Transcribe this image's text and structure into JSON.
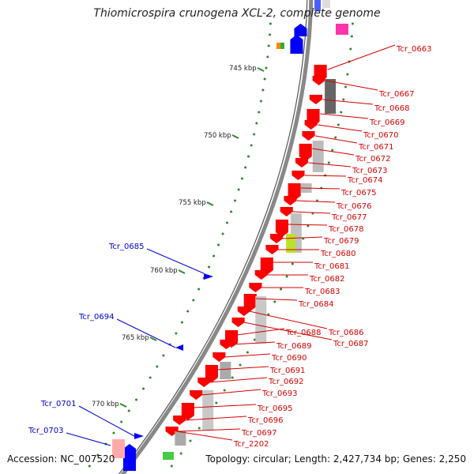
{
  "title": "Thiomicrospira crunogena XCL-2, complete genome",
  "footer": {
    "accession": "Accession: NC_007520",
    "summary": "Topology: circular; Length: 2,427,734 bp; Genes: 2,250"
  },
  "colors": {
    "forward_gene": "#ff0000",
    "reverse_gene": "#0000ff",
    "forward_label": "#d40000",
    "reverse_label": "#0000cc",
    "backbone": "#888888"
  },
  "scale_ticks": [
    "745 kbp",
    "750 kbp",
    "755 kbp",
    "760 kbp",
    "765 kbp",
    "770 kbp"
  ],
  "reverse_gene_labels": [
    "Tcr_0685",
    "Tcr_0694",
    "Tcr_0701",
    "Tcr_0703"
  ],
  "forward_gene_labels": [
    "Tcr_0663",
    "Tcr_0667",
    "Tcr_0668",
    "Tcr_0669",
    "Tcr_0670",
    "Tcr_0671",
    "Tcr_0672",
    "Tcr_0673",
    "Tcr_0674",
    "Tcr_0675",
    "Tcr_0676",
    "Tcr_0677",
    "Tcr_0678",
    "Tcr_0679",
    "Tcr_0680",
    "Tcr_0681",
    "Tcr_0682",
    "Tcr_0683",
    "Tcr_0684",
    "Tcr_0686",
    "Tcr_0687",
    "Tcr_0688",
    "Tcr_0689",
    "Tcr_0690",
    "Tcr_0691",
    "Tcr_0692",
    "Tcr_0693",
    "Tcr_0695",
    "Tcr_0696",
    "Tcr_0697",
    "Tcr_2202"
  ]
}
